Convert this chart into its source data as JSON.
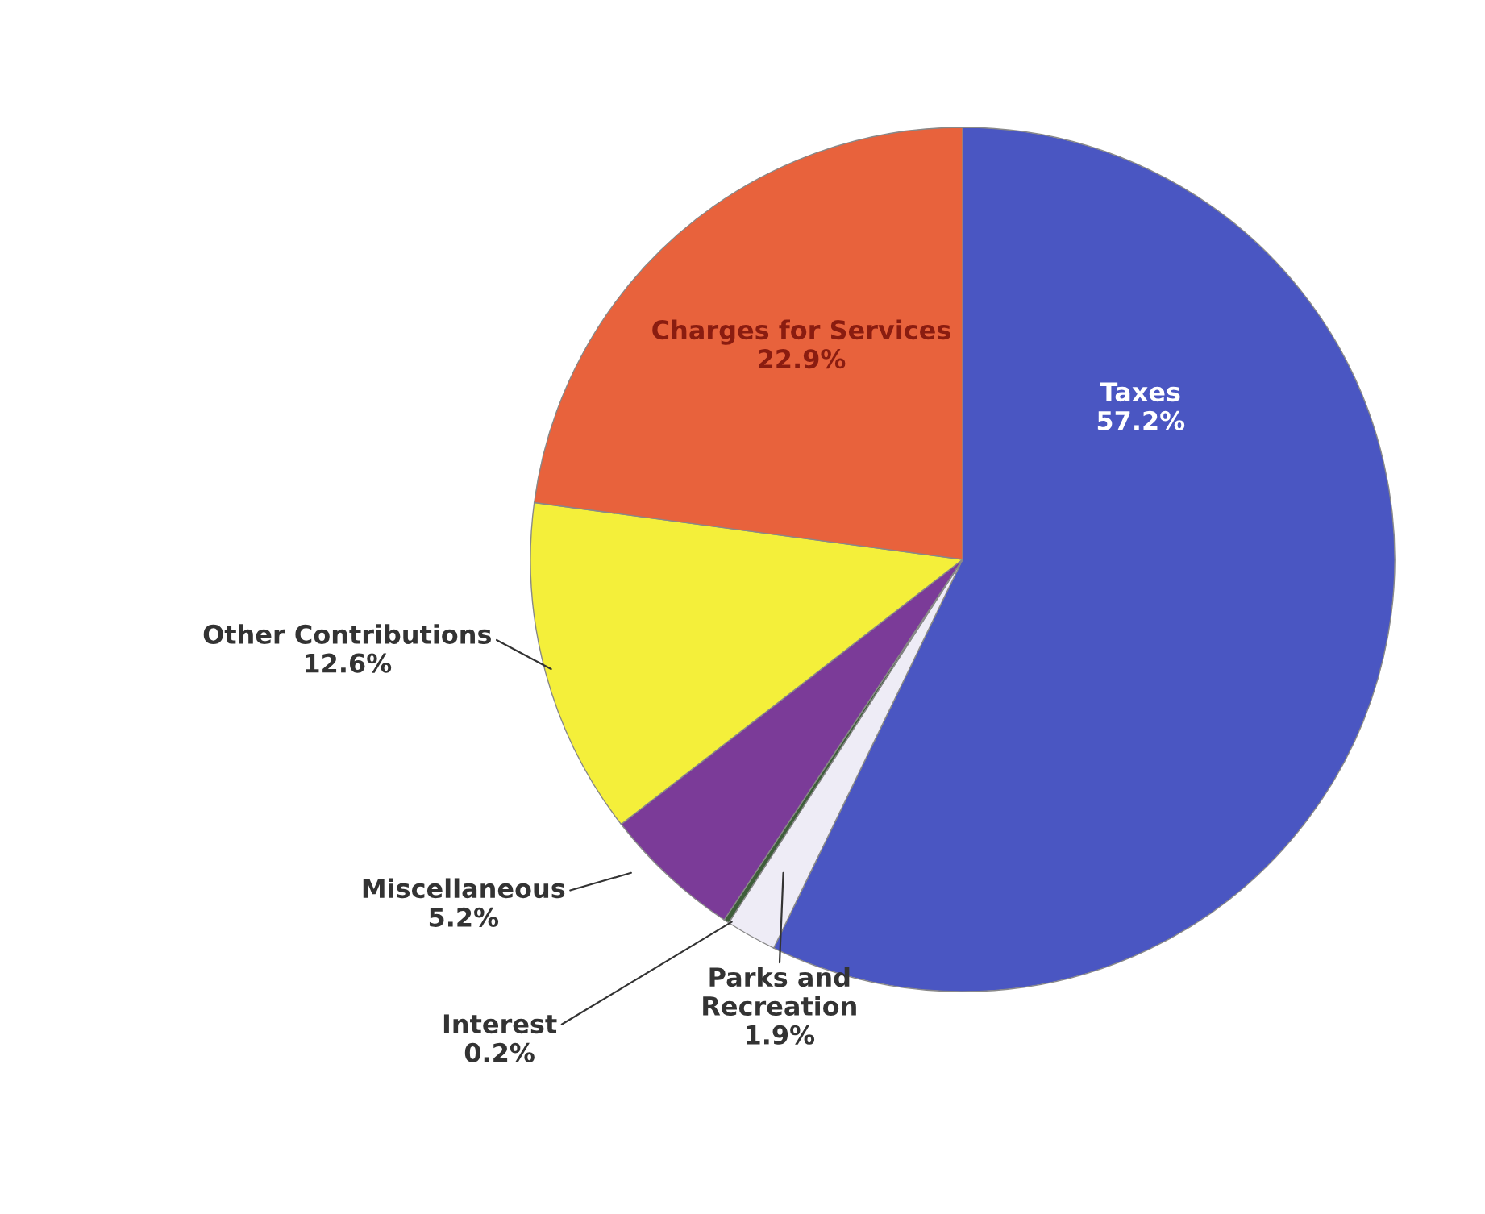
{
  "chart_data": {
    "type": "pie",
    "categories": [
      "Taxes",
      "Parks and Recreation",
      "Interest",
      "Miscellaneous",
      "Other Contributions",
      "Charges for Services"
    ],
    "values": [
      57.2,
      1.9,
      0.2,
      5.2,
      12.6,
      22.9
    ],
    "colors": [
      "#4a56c2",
      "#eeecf6",
      "#3e5e3a",
      "#7b3b98",
      "#f4ef3a",
      "#e8623c"
    ],
    "value_labels": [
      "57.2%",
      "1.9%",
      "0.2%",
      "5.2%",
      "12.6%",
      "22.9%"
    ],
    "legend": false
  }
}
